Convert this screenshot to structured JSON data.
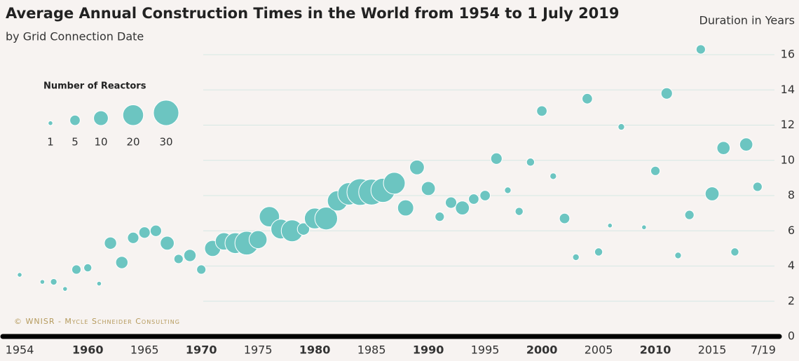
{
  "chart_data": {
    "type": "bubble",
    "title": "Average Annual Construction Times in the World from 1954 to 1 July 2019",
    "subtitle": "by Grid Connection Date",
    "y_axis_label": "Duration in Years",
    "credit": "© WNISR - Mycle Schneider Consulting",
    "color": "#6cc5c1",
    "grid": true,
    "x": [
      1954,
      1956,
      1957,
      1958,
      1959,
      1960,
      1961,
      1962,
      1963,
      1964,
      1965,
      1966,
      1967,
      1968,
      1969,
      1970,
      1971,
      1972,
      1973,
      1974,
      1975,
      1976,
      1977,
      1978,
      1979,
      1980,
      1981,
      1982,
      1983,
      1984,
      1985,
      1986,
      1987,
      1988,
      1989,
      1990,
      1991,
      1992,
      1993,
      1994,
      1995,
      1996,
      1997,
      1998,
      1999,
      2000,
      2001,
      2002,
      2003,
      2004,
      2005,
      2006,
      2007,
      2009,
      2010,
      2011,
      2012,
      2013,
      2014,
      2015,
      2016,
      2017,
      2018,
      2019
    ],
    "values": [
      3.5,
      3.1,
      3.1,
      2.7,
      3.8,
      3.9,
      3.0,
      5.3,
      4.2,
      5.6,
      5.9,
      6.0,
      5.3,
      4.4,
      4.6,
      3.8,
      5.0,
      5.4,
      5.3,
      5.3,
      5.5,
      6.8,
      6.1,
      6.0,
      6.1,
      6.7,
      6.7,
      7.7,
      8.1,
      8.2,
      8.2,
      8.3,
      8.7,
      7.3,
      9.6,
      8.4,
      6.8,
      7.6,
      7.3,
      7.8,
      8.0,
      10.1,
      8.3,
      7.1,
      9.9,
      12.8,
      9.1,
      6.7,
      4.5,
      13.5,
      4.8,
      6.3,
      11.9,
      6.2,
      9.4,
      13.8,
      4.6,
      6.9,
      16.3,
      8.1,
      10.7,
      4.8,
      10.9,
      8.5
    ],
    "sizes": [
      1,
      1,
      2,
      1,
      4,
      3,
      1,
      7,
      7,
      6,
      6,
      6,
      9,
      4,
      7,
      4,
      12,
      14,
      20,
      26,
      15,
      19,
      18,
      22,
      7,
      20,
      24,
      19,
      23,
      33,
      31,
      27,
      22,
      12,
      10,
      9,
      4,
      6,
      9,
      5,
      5,
      6,
      2,
      3,
      3,
      5,
      2,
      5,
      2,
      5,
      3,
      1,
      2,
      1,
      4,
      6,
      2,
      4,
      4,
      9,
      8,
      3,
      8,
      4
    ],
    "xlim": [
      1952.3,
      2020.8
    ],
    "xticks": [
      1954,
      1960,
      1965,
      1970,
      1975,
      1980,
      1985,
      1990,
      1995,
      2000,
      2005,
      2010,
      2015,
      {
        "value": 2019.5,
        "label": "7/19"
      }
    ],
    "ylim": [
      0,
      16.5
    ],
    "yticks": [
      0,
      2,
      4,
      6,
      8,
      10,
      12,
      14,
      16
    ],
    "size_legend": {
      "title": "Number of Reactors",
      "sizes": [
        1,
        5,
        10,
        20,
        30
      ]
    }
  }
}
